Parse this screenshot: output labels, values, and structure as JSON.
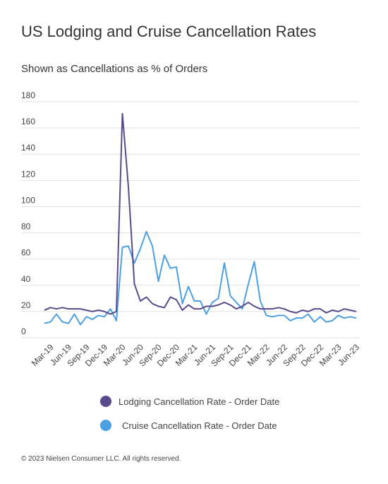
{
  "chart_data": {
    "type": "line",
    "title": "US Lodging and Cruise Cancellation Rates",
    "subtitle": "Shown as Cancellations as % of Orders",
    "footer": "© 2023 Nielsen Consumer LLC. All rights reserved.",
    "categories": [
      null,
      "Mar-19",
      null,
      null,
      "Jun-19",
      null,
      null,
      "Sep-19",
      null,
      null,
      "Dec-19",
      null,
      null,
      "Mar-20",
      null,
      null,
      "Jun-20",
      null,
      null,
      "Sep-20",
      null,
      null,
      "Dec-20",
      null,
      null,
      "Mar-21",
      null,
      null,
      "Jun-21",
      null,
      null,
      "Sep-21",
      null,
      null,
      "Dec-21",
      null,
      null,
      "Mar-22",
      null,
      null,
      "Jun-22",
      null,
      null,
      "Sep-22",
      null,
      null,
      "Dec-22",
      null,
      null,
      "Mar-23",
      null,
      null,
      "Jun-23"
    ],
    "series": [
      {
        "name": "Lodging Cancellation Rate - Order Date",
        "color": "#5b4a8b",
        "values": [
          21,
          23,
          22,
          23,
          22,
          22,
          22,
          21,
          20,
          21,
          20,
          18,
          20,
          171,
          115,
          41,
          28,
          31,
          26,
          24,
          23,
          31,
          29,
          21,
          25,
          22,
          22,
          24,
          24,
          25,
          27,
          25,
          22,
          24,
          27,
          24,
          22,
          22,
          22,
          23,
          22,
          20,
          19,
          21,
          20,
          22,
          22,
          19,
          21,
          20,
          22,
          21,
          20
        ]
      },
      {
        "name": "Cruise Cancellation Rate - Order Date",
        "color": "#4c9fe0",
        "values": [
          11,
          12,
          18,
          12,
          11,
          18,
          10,
          16,
          14,
          17,
          16,
          22,
          13,
          69,
          70,
          57,
          68,
          81,
          70,
          43,
          63,
          53,
          54,
          26,
          39,
          28,
          28,
          18,
          27,
          30,
          57,
          32,
          27,
          22,
          41,
          58,
          28,
          17,
          16,
          17,
          17,
          13,
          15,
          15,
          18,
          12,
          16,
          12,
          13,
          17,
          15,
          16,
          15
        ]
      }
    ],
    "ylim": [
      0,
      180
    ],
    "yticks": [
      0,
      20,
      40,
      60,
      80,
      100,
      120,
      140,
      160,
      180
    ],
    "grid": true
  }
}
